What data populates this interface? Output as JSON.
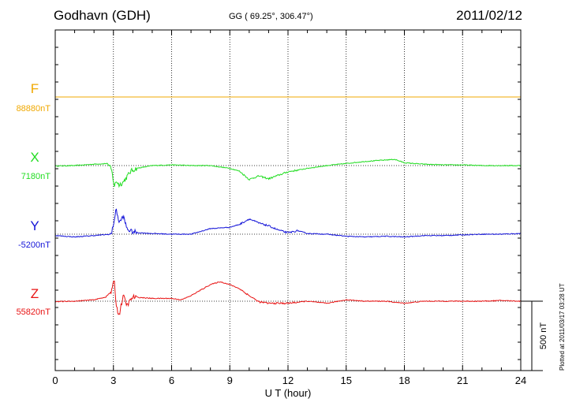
{
  "header": {
    "station": "Godhavn (GDH)",
    "coords": "GG ( 69.25°, 306.47°)",
    "date": "2011/02/12"
  },
  "footer": {
    "plotted": "Plotted at 2011/03/17 03:28 UT"
  },
  "colors": {
    "F": "#f0a800",
    "X": "#22dd22",
    "Y": "#1414d8",
    "Z": "#e81414"
  },
  "chart_data": {
    "type": "line",
    "xlabel": "U T (hour)",
    "xlim": [
      0,
      24
    ],
    "xticks": [
      0,
      3,
      6,
      9,
      12,
      15,
      18,
      21,
      24
    ],
    "scale_bar": "500 nT",
    "grid": true,
    "series": [
      {
        "name": "F",
        "baseline_label": "88880nT",
        "x": [
          0,
          24
        ],
        "y": [
          0,
          0
        ]
      },
      {
        "name": "X",
        "baseline_label": "7180nT",
        "x": [
          0,
          1,
          2,
          2.7,
          2.9,
          3.05,
          3.15,
          3.3,
          3.5,
          3.7,
          3.9,
          4.2,
          5,
          6,
          7,
          8,
          9,
          9.5,
          10,
          10.5,
          11,
          11.5,
          12,
          13,
          14,
          15,
          16,
          17,
          17.5,
          18,
          19,
          20,
          21,
          22,
          23,
          24
        ],
        "y": [
          -3,
          0,
          10,
          15,
          -30,
          -150,
          -110,
          -140,
          -120,
          -80,
          -40,
          -20,
          0,
          5,
          0,
          0,
          -20,
          -40,
          -100,
          -75,
          -95,
          -70,
          -45,
          -20,
          0,
          15,
          30,
          40,
          45,
          20,
          10,
          5,
          5,
          0,
          0,
          0
        ]
      },
      {
        "name": "Y",
        "baseline_label": "-5200nT",
        "x": [
          0,
          1,
          2,
          2.9,
          3.05,
          3.15,
          3.3,
          3.5,
          3.7,
          3.9,
          4.3,
          5,
          6,
          7,
          8,
          9,
          9.5,
          10,
          10.5,
          11,
          11.5,
          12,
          12.5,
          13,
          14,
          15,
          16,
          17,
          18,
          19,
          20,
          21,
          22,
          23,
          24
        ],
        "y": [
          -10,
          -20,
          -10,
          0,
          110,
          180,
          80,
          130,
          40,
          20,
          10,
          5,
          0,
          0,
          40,
          50,
          70,
          110,
          80,
          60,
          30,
          10,
          25,
          5,
          0,
          -15,
          -20,
          -15,
          -20,
          -10,
          -10,
          -5,
          0,
          0,
          5
        ]
      },
      {
        "name": "Z",
        "baseline_label": "55820nT",
        "x": [
          0,
          1,
          2,
          2.6,
          2.9,
          3.05,
          3.15,
          3.3,
          3.5,
          3.7,
          4,
          5,
          6,
          6.5,
          7,
          7.5,
          8,
          8.5,
          9,
          9.5,
          10,
          10.5,
          11,
          12,
          13,
          14,
          15,
          16,
          17,
          18,
          19,
          20,
          21,
          22,
          23,
          24
        ],
        "y": [
          -3,
          0,
          10,
          30,
          70,
          150,
          -40,
          -100,
          40,
          -30,
          30,
          20,
          20,
          10,
          40,
          80,
          120,
          140,
          120,
          90,
          40,
          -5,
          -15,
          -15,
          0,
          -15,
          10,
          0,
          0,
          -15,
          0,
          0,
          0,
          0,
          5,
          0
        ]
      }
    ]
  }
}
